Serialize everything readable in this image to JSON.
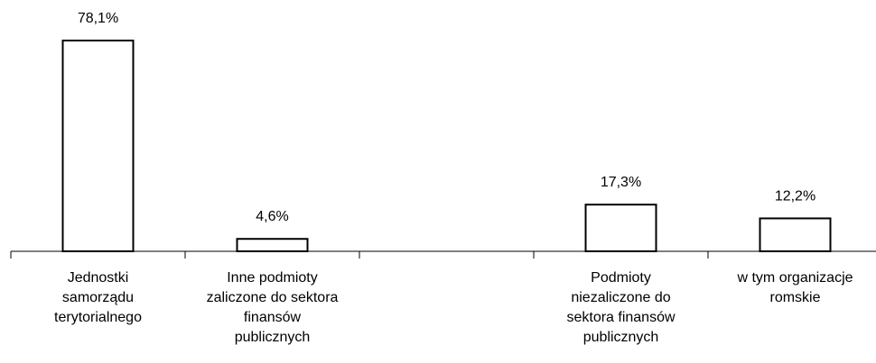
{
  "chart_data": {
    "type": "bar",
    "categories": [
      "Jednostki samorządu terytorialnego",
      "Inne podmioty zaliczone do sektora finansów publicznych",
      null,
      "Podmioty niezaliczone do sektora finansów publicznych",
      "w tym organizacje romskie"
    ],
    "values": [
      78.1,
      4.6,
      null,
      17.3,
      12.2
    ],
    "value_labels": [
      "78,1%",
      "4,6%",
      null,
      "17,3%",
      "12,2%"
    ],
    "color": "#ffffff"
  }
}
